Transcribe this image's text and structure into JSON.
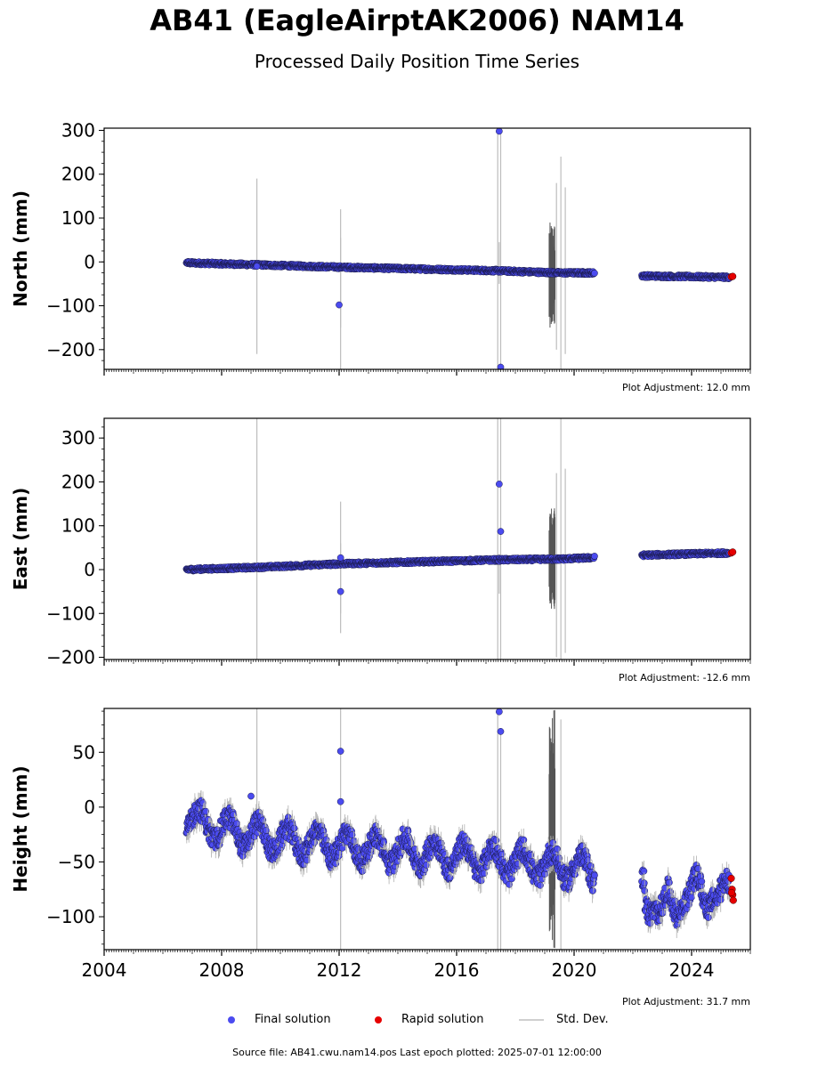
{
  "title": "AB41 (EagleAirptAK2006) NAM14",
  "subtitle": "Processed Daily Position Time Series",
  "footer": "Source file: AB41.cwu.nam14.pos  Last epoch plotted: 2025-07-01 12:00:00",
  "legend": {
    "final": "Final solution",
    "rapid": "Rapid solution",
    "stddev": "Std. Dev."
  },
  "colors": {
    "final": "#4b4bf0",
    "rapid": "#e60000",
    "stddev": "#bdbdbd",
    "stddev_dark": "#555555"
  },
  "chart_data": [
    {
      "type": "scatter",
      "ylabel": "North (mm)",
      "adjustment": "Plot Adjustment: 12.0 mm",
      "xlim": [
        2004,
        2026
      ],
      "ylim": [
        -245,
        305
      ],
      "yticks": [
        "300",
        "200",
        "100",
        "0",
        "−100",
        "−200"
      ],
      "ytick_values": [
        300,
        200,
        100,
        0,
        -100,
        -200
      ],
      "final_trend": [
        [
          2006.8,
          -2
        ],
        [
          2012,
          -12
        ],
        [
          2017.3,
          -20
        ],
        [
          2019.5,
          -25
        ],
        [
          2020.6,
          -25
        ],
        [
          2022.4,
          -32
        ],
        [
          2025.3,
          -35
        ]
      ],
      "final_gaps": [
        [
          2020.7,
          2022.3
        ]
      ],
      "final_outliers": [
        [
          2012.0,
          -98
        ],
        [
          2017.45,
          298
        ],
        [
          2017.5,
          -240
        ],
        [
          2009.2,
          -10
        ]
      ],
      "rapid_points": [
        [
          2025.35,
          -34
        ],
        [
          2025.4,
          -33
        ]
      ],
      "stddev_lines": [
        [
          2009.2,
          -210,
          190
        ],
        [
          2012.05,
          -245,
          120
        ],
        [
          2012.05,
          -150,
          55
        ],
        [
          2017.4,
          -245,
          300
        ],
        [
          2017.5,
          -245,
          300
        ],
        [
          2017.45,
          -50,
          45
        ],
        [
          2019.4,
          -200,
          180
        ],
        [
          2019.55,
          -245,
          240
        ],
        [
          2019.7,
          -210,
          170
        ]
      ],
      "dark_band": [
        2019.15,
        2019.35,
        -150,
        90
      ]
    },
    {
      "type": "scatter",
      "ylabel": "East (mm)",
      "adjustment": "Plot Adjustment: -12.6 mm",
      "xlim": [
        2004,
        2026
      ],
      "ylim": [
        -205,
        345
      ],
      "yticks": [
        "300",
        "200",
        "100",
        "0",
        "−100",
        "−200"
      ],
      "ytick_values": [
        300,
        200,
        100,
        0,
        -100,
        -200
      ],
      "final_trend": [
        [
          2006.8,
          0
        ],
        [
          2009.2,
          5
        ],
        [
          2012,
          13
        ],
        [
          2017.3,
          22
        ],
        [
          2019.5,
          24
        ],
        [
          2020.6,
          27
        ],
        [
          2022.4,
          33
        ],
        [
          2025.3,
          38
        ]
      ],
      "final_gaps": [
        [
          2020.7,
          2022.3
        ]
      ],
      "final_outliers": [
        [
          2012.05,
          27
        ],
        [
          2012.05,
          -50
        ],
        [
          2017.45,
          195
        ],
        [
          2017.5,
          87
        ]
      ],
      "rapid_points": [
        [
          2025.35,
          38
        ],
        [
          2025.4,
          40
        ]
      ],
      "stddev_lines": [
        [
          2009.2,
          -205,
          345
        ],
        [
          2012.05,
          -145,
          155
        ],
        [
          2012.05,
          -100,
          60
        ],
        [
          2017.4,
          -205,
          345
        ],
        [
          2017.5,
          -205,
          345
        ],
        [
          2017.45,
          -55,
          35
        ],
        [
          2019.4,
          -200,
          220
        ],
        [
          2019.55,
          -205,
          345
        ],
        [
          2019.7,
          -190,
          230
        ]
      ],
      "dark_band": [
        2019.15,
        2019.35,
        -90,
        140
      ]
    },
    {
      "type": "scatter",
      "ylabel": "Height (mm)",
      "adjustment": "Plot Adjustment: 31.7 mm",
      "xlim": [
        2004,
        2026
      ],
      "ylim": [
        -130,
        90
      ],
      "yticks": [
        "50",
        "0",
        "−50",
        "−100"
      ],
      "ytick_values": [
        50,
        0,
        -50,
        -100
      ],
      "xticks": [
        "2004",
        "2008",
        "2012",
        "2016",
        "2020",
        "2024"
      ],
      "xtick_values": [
        2004,
        2008,
        2012,
        2016,
        2020,
        2024
      ],
      "final_trend": [
        [
          2006.8,
          -10
        ],
        [
          2008,
          -20
        ],
        [
          2010,
          -30
        ],
        [
          2012,
          -35
        ],
        [
          2014,
          -40
        ],
        [
          2016,
          -45
        ],
        [
          2018,
          -50
        ],
        [
          2020,
          -55
        ],
        [
          2020.6,
          -58
        ],
        [
          2022.4,
          -75
        ],
        [
          2023,
          -90
        ],
        [
          2024,
          -72
        ],
        [
          2025.3,
          -75
        ]
      ],
      "final_gaps": [
        [
          2020.7,
          2022.3
        ]
      ],
      "final_outliers": [
        [
          2012.05,
          51
        ],
        [
          2012.05,
          5
        ],
        [
          2017.45,
          87
        ],
        [
          2017.5,
          69
        ],
        [
          2009,
          10
        ]
      ],
      "rapid_points": [
        [
          2025.35,
          -65
        ],
        [
          2025.38,
          -75
        ],
        [
          2025.4,
          -80
        ],
        [
          2025.42,
          -85
        ],
        [
          2025.36,
          -78
        ]
      ],
      "stddev_lines": [
        [
          2009.2,
          -130,
          90
        ],
        [
          2012.05,
          -130,
          90
        ],
        [
          2017.4,
          -130,
          90
        ],
        [
          2017.5,
          -130,
          70
        ],
        [
          2019.55,
          -130,
          80
        ]
      ],
      "dark_band": [
        2019.15,
        2019.35,
        -130,
        90
      ]
    }
  ]
}
